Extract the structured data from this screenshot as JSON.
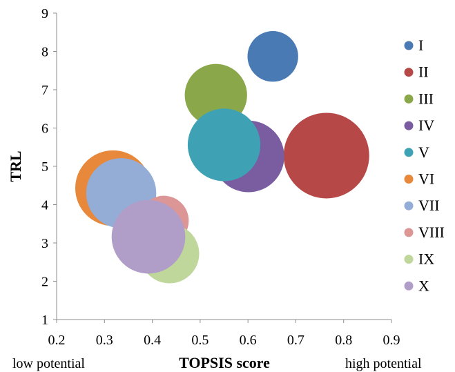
{
  "chart_data": {
    "type": "bubble",
    "xlabel": "TOPSIS score",
    "ylabel": "TRL",
    "xlim": [
      0.2,
      0.9
    ],
    "ylim": [
      1,
      9
    ],
    "x_ticks": [
      "0.2",
      "0.3",
      "0.4",
      "0.5",
      "0.6",
      "0.7",
      "0.8",
      "0.9"
    ],
    "y_ticks": [
      "1",
      "2",
      "3",
      "4",
      "5",
      "6",
      "7",
      "8",
      "9"
    ],
    "grid": false,
    "legend_position": "right",
    "annotations": {
      "left": "low potential",
      "right": "high potential"
    },
    "series": [
      {
        "name": "I",
        "x": 0.652,
        "y": 7.87,
        "size": 0.35,
        "color": "#4a7ab4"
      },
      {
        "name": "II",
        "x": 0.764,
        "y": 5.28,
        "size": 1.0,
        "color": "#b64848"
      },
      {
        "name": "III",
        "x": 0.533,
        "y": 6.86,
        "size": 0.53,
        "color": "#8aa84a"
      },
      {
        "name": "IV",
        "x": 0.601,
        "y": 5.26,
        "size": 0.7,
        "color": "#7a5ca0"
      },
      {
        "name": "V",
        "x": 0.55,
        "y": 5.56,
        "size": 0.72,
        "color": "#3fa2b4"
      },
      {
        "name": "VI",
        "x": 0.318,
        "y": 4.43,
        "size": 0.78,
        "color": "#e8883a"
      },
      {
        "name": "VII",
        "x": 0.335,
        "y": 4.3,
        "size": 0.67,
        "color": "#93add6"
      },
      {
        "name": "VIII",
        "x": 0.424,
        "y": 3.58,
        "size": 0.34,
        "color": "#dc9696"
      },
      {
        "name": "IX",
        "x": 0.436,
        "y": 2.72,
        "size": 0.48,
        "color": "#bfd79a"
      },
      {
        "name": "X",
        "x": 0.392,
        "y": 3.16,
        "size": 0.74,
        "color": "#b19ec8"
      }
    ]
  }
}
